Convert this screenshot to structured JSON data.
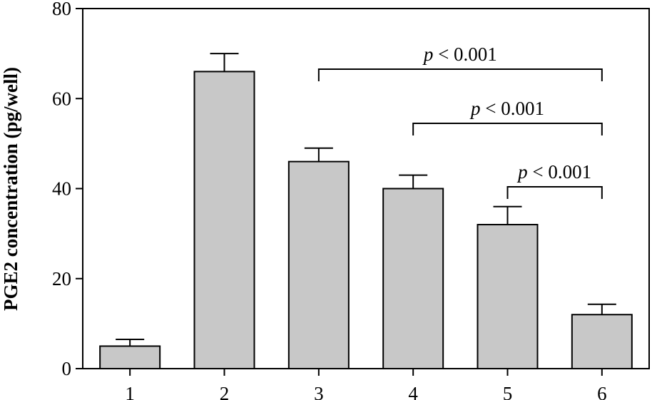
{
  "chart_data": {
    "type": "bar",
    "categories": [
      "1",
      "2",
      "3",
      "4",
      "5",
      "6"
    ],
    "values": [
      5,
      66,
      46,
      40,
      32,
      12
    ],
    "errors": [
      1.5,
      4,
      3,
      3,
      4,
      2.3
    ],
    "title": "",
    "xlabel": "",
    "ylabel": "PGE2 concentration (pg/well)",
    "ylim": [
      0,
      80
    ],
    "yticks": [
      "0",
      "20",
      "40",
      "60",
      "80"
    ],
    "grid": false,
    "bar_color": "#c8c8c8",
    "annotations": [
      {
        "from": "3",
        "to": "6",
        "p_symbol": "p",
        "text": " < 0.001"
      },
      {
        "from": "4",
        "to": "6",
        "p_symbol": "p",
        "text": " < 0.001"
      },
      {
        "from": "5",
        "to": "6",
        "p_symbol": "p",
        "text": " < 0.001"
      }
    ]
  }
}
